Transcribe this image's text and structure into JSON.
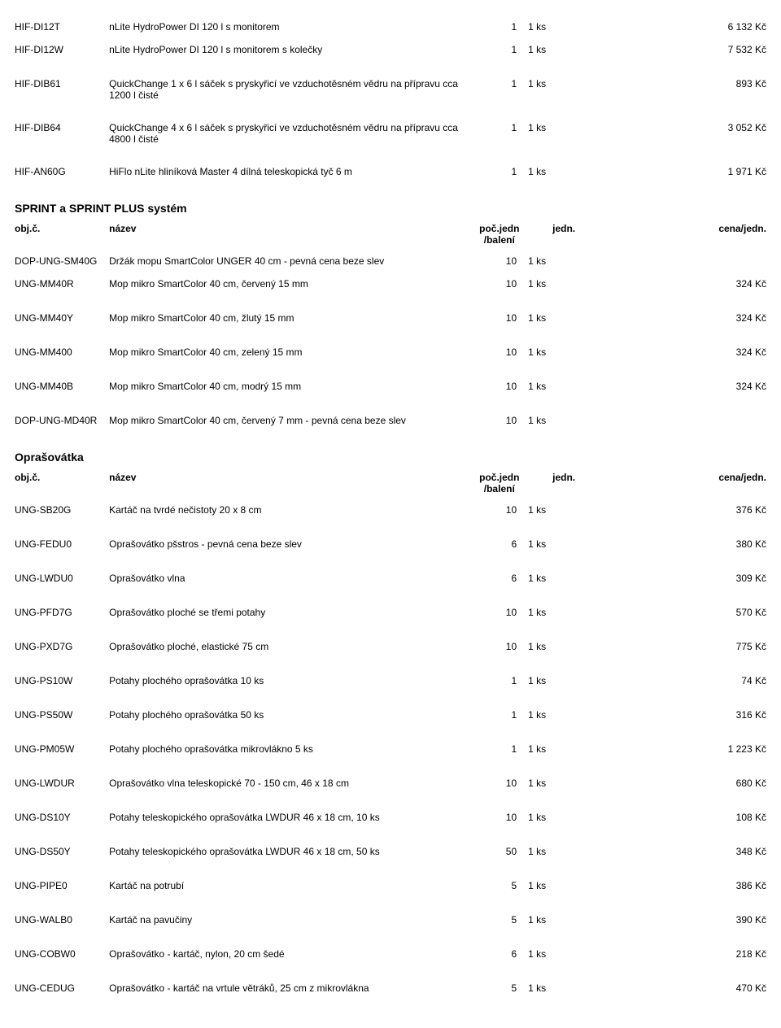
{
  "top_rows": [
    {
      "code": "HIF-DI12T",
      "name": "nLite HydroPower DI 120 l s monitorem",
      "qty": "1",
      "unit": "1 ks",
      "price": "6 132 Kč"
    },
    {
      "code": "HIF-DI12W",
      "name": "nLite HydroPower DI 120 l s monitorem s kolečky",
      "qty": "1",
      "unit": "1 ks",
      "price": "7 532 Kč"
    },
    {
      "code": "HIF-DIB61",
      "name": "QuickChange 1 x 6 l sáček s pryskyřicí ve vzduchotěsném vědru na přípravu cca 1200 l čisté",
      "qty": "1",
      "unit": "1 ks",
      "price": "893 Kč"
    },
    {
      "code": "HIF-DIB64",
      "name": "QuickChange 4 x 6 l sáček s pryskyřicí ve vzduchotěsném vědru na přípravu cca 4800 l čisté",
      "qty": "1",
      "unit": "1 ks",
      "price": "3 052 Kč"
    },
    {
      "code": "HIF-AN60G",
      "name": "HiFlo nLite hliníková Master 4 dílná teleskopická tyč 6 m",
      "qty": "1",
      "unit": "1 ks",
      "price": "1 971 Kč"
    }
  ],
  "section1": {
    "title": "SPRINT a SPRINT PLUS systém",
    "header": {
      "code": "obj.č.",
      "name": "název",
      "qty": "poč.jedn /balení",
      "unit": "jedn.",
      "price": "cena/jedn."
    },
    "rows": [
      {
        "code": "DOP-UNG-SM40G",
        "name": "Držák mopu SmartColor UNGER 40 cm - pevná cena beze slev",
        "qty": "10",
        "unit": "1 ks",
        "price": ""
      },
      {
        "code": "UNG-MM40R",
        "name": "Mop mikro SmartColor 40 cm, červený 15 mm",
        "qty": "10",
        "unit": "1 ks",
        "price": "324 Kč"
      },
      {
        "code": "UNG-MM40Y",
        "name": "Mop mikro SmartColor 40 cm, žlutý 15 mm",
        "qty": "10",
        "unit": "1 ks",
        "price": "324 Kč"
      },
      {
        "code": "UNG-MM400",
        "name": "Mop mikro SmartColor 40 cm, zelený 15 mm",
        "qty": "10",
        "unit": "1 ks",
        "price": "324 Kč"
      },
      {
        "code": "UNG-MM40B",
        "name": "Mop mikro SmartColor 40 cm, modrý 15 mm",
        "qty": "10",
        "unit": "1 ks",
        "price": "324 Kč"
      },
      {
        "code": "DOP-UNG-MD40R",
        "name": "Mop mikro SmartColor 40 cm, červený 7 mm - pevná cena beze slev",
        "qty": "10",
        "unit": "1 ks",
        "price": ""
      }
    ]
  },
  "section2": {
    "title": "Oprašovátka",
    "header": {
      "code": "obj.č.",
      "name": "název",
      "qty": "poč.jedn /balení",
      "unit": "jedn.",
      "price": "cena/jedn."
    },
    "rows": [
      {
        "code": "UNG-SB20G",
        "name": "Kartáč na tvrdé nečistoty 20 x 8 cm",
        "qty": "10",
        "unit": "1 ks",
        "price": "376 Kč"
      },
      {
        "code": "UNG-FEDU0",
        "name": "Oprašovátko pšstros - pevná cena beze slev",
        "qty": "6",
        "unit": "1 ks",
        "price": "380 Kč"
      },
      {
        "code": "UNG-LWDU0",
        "name": "Oprašovátko vlna",
        "qty": "6",
        "unit": "1 ks",
        "price": "309 Kč"
      },
      {
        "code": "UNG-PFD7G",
        "name": "Oprašovátko ploché se třemi potahy",
        "qty": "10",
        "unit": "1 ks",
        "price": "570 Kč"
      },
      {
        "code": "UNG-PXD7G",
        "name": "Oprašovátko ploché, elastické 75 cm",
        "qty": "10",
        "unit": "1 ks",
        "price": "775 Kč"
      },
      {
        "code": "UNG-PS10W",
        "name": "Potahy plochého oprašovátka 10 ks",
        "qty": "1",
        "unit": "1 ks",
        "price": "74 Kč"
      },
      {
        "code": "UNG-PS50W",
        "name": "Potahy plochého oprašovátka 50 ks",
        "qty": "1",
        "unit": "1 ks",
        "price": "316 Kč"
      },
      {
        "code": "UNG-PM05W",
        "name": "Potahy plochého oprašovátka mikrovlákno 5 ks",
        "qty": "1",
        "unit": "1 ks",
        "price": "1 223 Kč"
      },
      {
        "code": "UNG-LWDUR",
        "name": "Oprašovátko vlna teleskopické 70 - 150 cm, 46 x 18 cm",
        "qty": "10",
        "unit": "1 ks",
        "price": "680 Kč"
      },
      {
        "code": "UNG-DS10Y",
        "name": "Potahy teleskopického oprašovátka LWDUR 46 x 18 cm, 10 ks",
        "qty": "10",
        "unit": "1 ks",
        "price": "108 Kč"
      },
      {
        "code": "UNG-DS50Y",
        "name": "Potahy teleskopického oprašovátka LWDUR 46 x 18 cm, 50 ks",
        "qty": "50",
        "unit": "1 ks",
        "price": "348 Kč"
      },
      {
        "code": "UNG-PIPE0",
        "name": "Kartáč na potrubí",
        "qty": "5",
        "unit": "1 ks",
        "price": "386 Kč"
      },
      {
        "code": "UNG-WALB0",
        "name": "Kartáč na pavučiny",
        "qty": "5",
        "unit": "1 ks",
        "price": "390 Kč"
      },
      {
        "code": "UNG-COBW0",
        "name": "Oprašovátko - kartáč, nylon, 20 cm šedé",
        "qty": "6",
        "unit": "1 ks",
        "price": "218 Kč"
      },
      {
        "code": "UNG-CEDUG",
        "name": "Oprašovátko - kartáč na vrtule větráků, 25 cm z mikrovlákna",
        "qty": "5",
        "unit": "1 ks",
        "price": "470 Kč"
      }
    ]
  }
}
